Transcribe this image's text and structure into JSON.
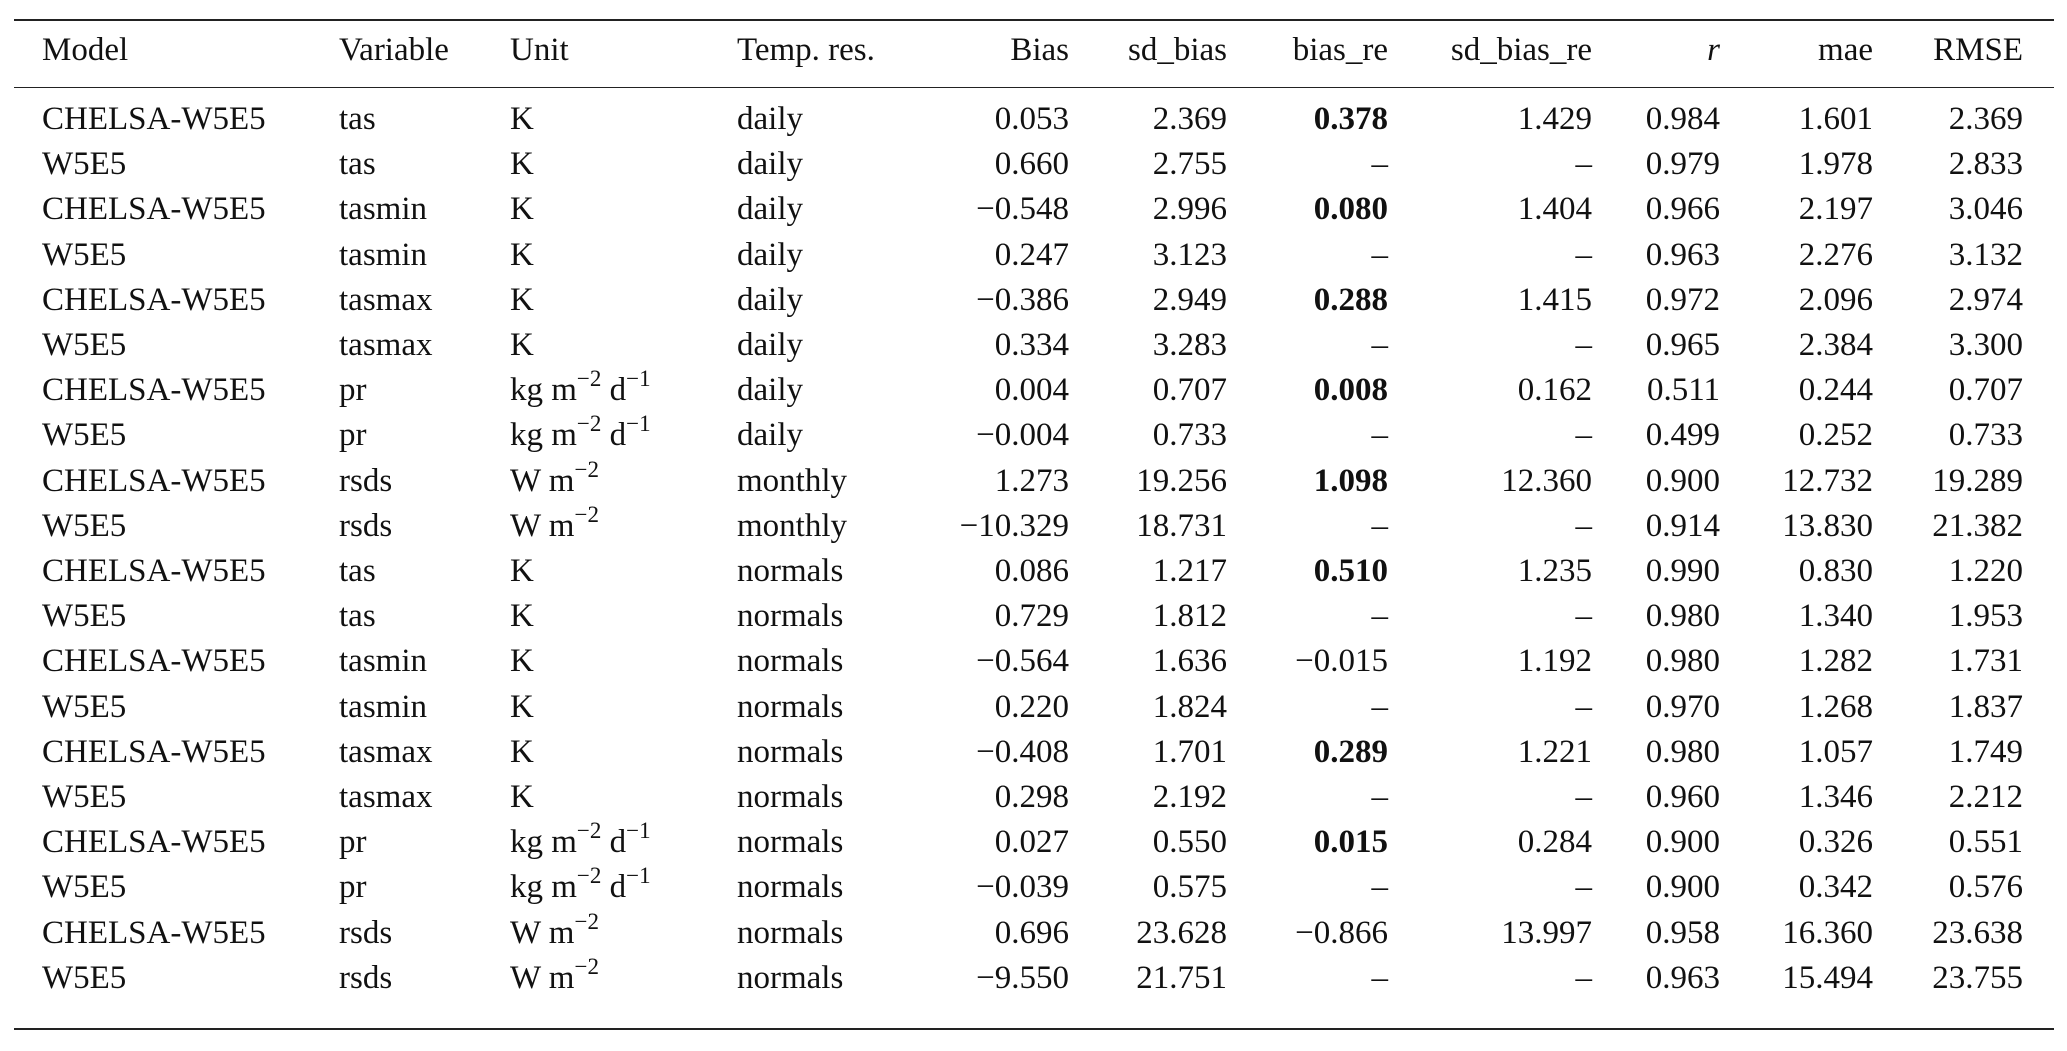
{
  "table": {
    "columns": [
      "Model",
      "Variable",
      "Unit",
      "Temp. res.",
      "Bias",
      "sd_bias",
      "bias_re",
      "sd_bias_re",
      "r",
      "mae",
      "RMSE"
    ],
    "rows": [
      {
        "model": "CHELSA-W5E5",
        "variable": "tas",
        "unit": [
          {
            "base": "K"
          }
        ],
        "temp_res": "daily",
        "values": [
          "0.053",
          "2.369",
          "0.378",
          "1.429",
          "0.984",
          "1.601",
          "2.369"
        ],
        "bold_bias_re": true
      },
      {
        "model": "W5E5",
        "variable": "tas",
        "unit": [
          {
            "base": "K"
          }
        ],
        "temp_res": "daily",
        "values": [
          "0.660",
          "2.755",
          "–",
          "–",
          "0.979",
          "1.978",
          "2.833"
        ],
        "bold_bias_re": false
      },
      {
        "model": "CHELSA-W5E5",
        "variable": "tasmin",
        "unit": [
          {
            "base": "K"
          }
        ],
        "temp_res": "daily",
        "values": [
          "−0.548",
          "2.996",
          "0.080",
          "1.404",
          "0.966",
          "2.197",
          "3.046"
        ],
        "bold_bias_re": true
      },
      {
        "model": "W5E5",
        "variable": "tasmin",
        "unit": [
          {
            "base": "K"
          }
        ],
        "temp_res": "daily",
        "values": [
          "0.247",
          "3.123",
          "–",
          "–",
          "0.963",
          "2.276",
          "3.132"
        ],
        "bold_bias_re": false
      },
      {
        "model": "CHELSA-W5E5",
        "variable": "tasmax",
        "unit": [
          {
            "base": "K"
          }
        ],
        "temp_res": "daily",
        "values": [
          "−0.386",
          "2.949",
          "0.288",
          "1.415",
          "0.972",
          "2.096",
          "2.974"
        ],
        "bold_bias_re": true
      },
      {
        "model": "W5E5",
        "variable": "tasmax",
        "unit": [
          {
            "base": "K"
          }
        ],
        "temp_res": "daily",
        "values": [
          "0.334",
          "3.283",
          "–",
          "–",
          "0.965",
          "2.384",
          "3.300"
        ],
        "bold_bias_re": false
      },
      {
        "model": "CHELSA-W5E5",
        "variable": "pr",
        "unit": [
          {
            "base": "kg m",
            "sup": "−2"
          },
          {
            "base": " d",
            "sup": "−1"
          }
        ],
        "temp_res": "daily",
        "values": [
          "0.004",
          "0.707",
          "0.008",
          "0.162",
          "0.511",
          "0.244",
          "0.707"
        ],
        "bold_bias_re": true
      },
      {
        "model": "W5E5",
        "variable": "pr",
        "unit": [
          {
            "base": "kg m",
            "sup": "−2"
          },
          {
            "base": " d",
            "sup": "−1"
          }
        ],
        "temp_res": "daily",
        "values": [
          "−0.004",
          "0.733",
          "–",
          "–",
          "0.499",
          "0.252",
          "0.733"
        ],
        "bold_bias_re": false
      },
      {
        "model": "CHELSA-W5E5",
        "variable": "rsds",
        "unit": [
          {
            "base": "W m",
            "sup": "−2"
          }
        ],
        "temp_res": "monthly",
        "values": [
          "1.273",
          "19.256",
          "1.098",
          "12.360",
          "0.900",
          "12.732",
          "19.289"
        ],
        "bold_bias_re": true
      },
      {
        "model": "W5E5",
        "variable": "rsds",
        "unit": [
          {
            "base": "W m",
            "sup": "−2"
          }
        ],
        "temp_res": "monthly",
        "values": [
          "−10.329",
          "18.731",
          "–",
          "–",
          "0.914",
          "13.830",
          "21.382"
        ],
        "bold_bias_re": false
      },
      {
        "model": "CHELSA-W5E5",
        "variable": "tas",
        "unit": [
          {
            "base": "K"
          }
        ],
        "temp_res": "normals",
        "values": [
          "0.086",
          "1.217",
          "0.510",
          "1.235",
          "0.990",
          "0.830",
          "1.220"
        ],
        "bold_bias_re": true
      },
      {
        "model": "W5E5",
        "variable": "tas",
        "unit": [
          {
            "base": "K"
          }
        ],
        "temp_res": "normals",
        "values": [
          "0.729",
          "1.812",
          "–",
          "–",
          "0.980",
          "1.340",
          "1.953"
        ],
        "bold_bias_re": false
      },
      {
        "model": "CHELSA-W5E5",
        "variable": "tasmin",
        "unit": [
          {
            "base": "K"
          }
        ],
        "temp_res": "normals",
        "values": [
          "−0.564",
          "1.636",
          "−0.015",
          "1.192",
          "0.980",
          "1.282",
          "1.731"
        ],
        "bold_bias_re": false
      },
      {
        "model": "W5E5",
        "variable": "tasmin",
        "unit": [
          {
            "base": "K"
          }
        ],
        "temp_res": "normals",
        "values": [
          "0.220",
          "1.824",
          "–",
          "–",
          "0.970",
          "1.268",
          "1.837"
        ],
        "bold_bias_re": false
      },
      {
        "model": "CHELSA-W5E5",
        "variable": "tasmax",
        "unit": [
          {
            "base": "K"
          }
        ],
        "temp_res": "normals",
        "values": [
          "−0.408",
          "1.701",
          "0.289",
          "1.221",
          "0.980",
          "1.057",
          "1.749"
        ],
        "bold_bias_re": true
      },
      {
        "model": "W5E5",
        "variable": "tasmax",
        "unit": [
          {
            "base": "K"
          }
        ],
        "temp_res": "normals",
        "values": [
          "0.298",
          "2.192",
          "–",
          "–",
          "0.960",
          "1.346",
          "2.212"
        ],
        "bold_bias_re": false
      },
      {
        "model": "CHELSA-W5E5",
        "variable": "pr",
        "unit": [
          {
            "base": "kg m",
            "sup": "−2"
          },
          {
            "base": " d",
            "sup": "−1"
          }
        ],
        "temp_res": "normals",
        "values": [
          "0.027",
          "0.550",
          "0.015",
          "0.284",
          "0.900",
          "0.326",
          "0.551"
        ],
        "bold_bias_re": true
      },
      {
        "model": "W5E5",
        "variable": "pr",
        "unit": [
          {
            "base": "kg m",
            "sup": "−2"
          },
          {
            "base": " d",
            "sup": "−1"
          }
        ],
        "temp_res": "normals",
        "values": [
          "−0.039",
          "0.575",
          "–",
          "–",
          "0.900",
          "0.342",
          "0.576"
        ],
        "bold_bias_re": false
      },
      {
        "model": "CHELSA-W5E5",
        "variable": "rsds",
        "unit": [
          {
            "base": "W m",
            "sup": "−2"
          }
        ],
        "temp_res": "normals",
        "values": [
          "0.696",
          "23.628",
          "−0.866",
          "13.997",
          "0.958",
          "16.360",
          "23.638"
        ],
        "bold_bias_re": false
      },
      {
        "model": "W5E5",
        "variable": "rsds",
        "unit": [
          {
            "base": "W m",
            "sup": "−2"
          }
        ],
        "temp_res": "normals",
        "values": [
          "−9.550",
          "21.751",
          "–",
          "–",
          "0.963",
          "15.494",
          "23.755"
        ],
        "bold_bias_re": false
      }
    ]
  }
}
